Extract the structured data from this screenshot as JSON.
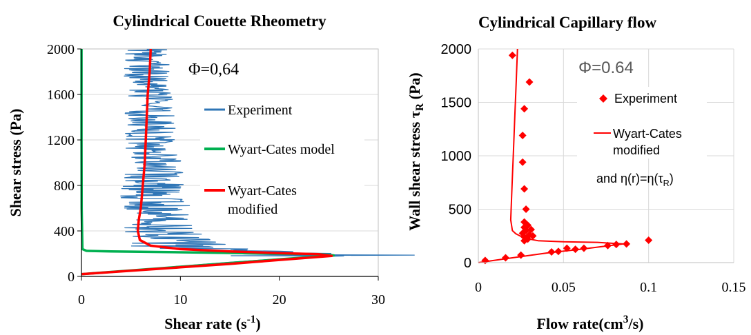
{
  "chart_data": [
    {
      "type": "line",
      "title": "Cylindrical Couette Rheometry",
      "xlabel": "Shear rate (s-1)",
      "ylabel": "Shear stress (Pa)",
      "xlim": [
        0,
        30
      ],
      "ylim": [
        0,
        2000
      ],
      "xticks": [
        "0",
        "10",
        "20",
        "30"
      ],
      "yticks": [
        "0",
        "400",
        "800",
        "1200",
        "1600",
        "2000"
      ],
      "annotation": "Φ=0,64",
      "grid": "horizontal",
      "legend_position": "right",
      "series": [
        {
          "name": "Experiment",
          "color": "#2e75b6",
          "style": "noisy-line",
          "noise_amplitude": [
            [
              180,
              11.0
            ],
            [
              260,
              6.0
            ],
            [
              400,
              4.0
            ],
            [
              800,
              3.2
            ],
            [
              1200,
              2.6
            ],
            [
              1600,
              2.4
            ],
            [
              2000,
              2.4
            ]
          ],
          "points": [
            [
              0,
              20
            ],
            [
              5,
              55
            ],
            [
              10,
              90
            ],
            [
              15,
              125
            ],
            [
              20,
              155
            ],
            [
              24.5,
              175
            ],
            [
              26.5,
              180
            ],
            [
              24,
              190
            ],
            [
              20,
              205
            ],
            [
              15,
              225
            ],
            [
              11,
              250
            ],
            [
              9,
              300
            ],
            [
              8,
              400
            ],
            [
              7.6,
              500
            ],
            [
              7.4,
              600
            ],
            [
              7.3,
              800
            ],
            [
              7.2,
              1000
            ],
            [
              7.0,
              1200
            ],
            [
              6.9,
              1400
            ],
            [
              6.8,
              1600
            ],
            [
              6.7,
              1800
            ],
            [
              6.6,
              2000
            ]
          ]
        },
        {
          "name": "Wyart-Cates model",
          "color": "#00b050",
          "points": [
            [
              0,
              20
            ],
            [
              10,
              85
            ],
            [
              20,
              150
            ],
            [
              25.5,
              185
            ],
            [
              24,
              195
            ],
            [
              20,
              200
            ],
            [
              10,
              212
            ],
            [
              3,
              220
            ],
            [
              0.5,
              225
            ],
            [
              0.1,
              240
            ],
            [
              0.02,
              600
            ],
            [
              0.01,
              1200
            ],
            [
              0.01,
              2000
            ]
          ]
        },
        {
          "name": "Wyart-Cates modified",
          "color": "#ff0000",
          "points": [
            [
              0,
              20
            ],
            [
              5,
              50
            ],
            [
              10,
              80
            ],
            [
              15,
              110
            ],
            [
              20,
              145
            ],
            [
              25.3,
              180
            ],
            [
              24,
              195
            ],
            [
              20,
              205
            ],
            [
              15,
              220
            ],
            [
              10,
              240
            ],
            [
              7,
              270
            ],
            [
              5.9,
              320
            ],
            [
              5.7,
              400
            ],
            [
              5.8,
              500
            ],
            [
              6.0,
              600
            ],
            [
              6.2,
              800
            ],
            [
              6.4,
              1000
            ],
            [
              6.5,
              1200
            ],
            [
              6.6,
              1400
            ],
            [
              6.7,
              1600
            ],
            [
              6.9,
              1800
            ],
            [
              7.0,
              2000
            ]
          ]
        }
      ]
    },
    {
      "type": "scatter",
      "title": "Cylindrical Capillary flow",
      "xlabel": "Flow rate(cm3/s)",
      "ylabel": "Wall shear stress τR (Pa)",
      "xlim": [
        0,
        0.15
      ],
      "ylim": [
        0,
        2000
      ],
      "xticks": [
        "0",
        "0.05",
        "0.1",
        "0.15"
      ],
      "yticks": [
        "0",
        "500",
        "1000",
        "1500",
        "2000"
      ],
      "annotation": "Φ=0.64",
      "note": "and η(r)=η(τR)",
      "grid": "both",
      "legend_position": "right",
      "series": [
        {
          "name": "Experiment",
          "color": "#ff0000",
          "marker": "diamond",
          "points": [
            [
              0.004,
              20
            ],
            [
              0.016,
              45
            ],
            [
              0.025,
              70
            ],
            [
              0.043,
              100
            ],
            [
              0.047,
              105
            ],
            [
              0.052,
              135
            ],
            [
              0.057,
              125
            ],
            [
              0.062,
              135
            ],
            [
              0.076,
              160
            ],
            [
              0.081,
              170
            ],
            [
              0.087,
              175
            ],
            [
              0.1,
              210
            ],
            [
              0.027,
              205
            ],
            [
              0.027,
              240
            ],
            [
              0.029,
              220
            ],
            [
              0.03,
              260
            ],
            [
              0.032,
              250
            ],
            [
              0.026,
              275
            ],
            [
              0.028,
              300
            ],
            [
              0.031,
              310
            ],
            [
              0.027,
              330
            ],
            [
              0.029,
              350
            ],
            [
              0.027,
              380
            ],
            [
              0.028,
              500
            ],
            [
              0.027,
              690
            ],
            [
              0.026,
              940
            ],
            [
              0.026,
              1190
            ],
            [
              0.027,
              1440
            ],
            [
              0.03,
              1690
            ],
            [
              0.02,
              1940
            ]
          ]
        },
        {
          "name": "Wyart-Cates modified",
          "color": "#ff0000",
          "points": [
            [
              0,
              0
            ],
            [
              0.02,
              45
            ],
            [
              0.04,
              90
            ],
            [
              0.06,
              125
            ],
            [
              0.075,
              155
            ],
            [
              0.085,
              175
            ],
            [
              0.07,
              190
            ],
            [
              0.05,
              195
            ],
            [
              0.035,
              205
            ],
            [
              0.027,
              230
            ],
            [
              0.022,
              270
            ],
            [
              0.02,
              300
            ],
            [
              0.019,
              400
            ],
            [
              0.0195,
              600
            ],
            [
              0.02,
              800
            ],
            [
              0.0205,
              1000
            ],
            [
              0.021,
              1200
            ],
            [
              0.0215,
              1400
            ],
            [
              0.022,
              1600
            ],
            [
              0.0225,
              1800
            ],
            [
              0.023,
              2000
            ]
          ]
        }
      ]
    }
  ]
}
